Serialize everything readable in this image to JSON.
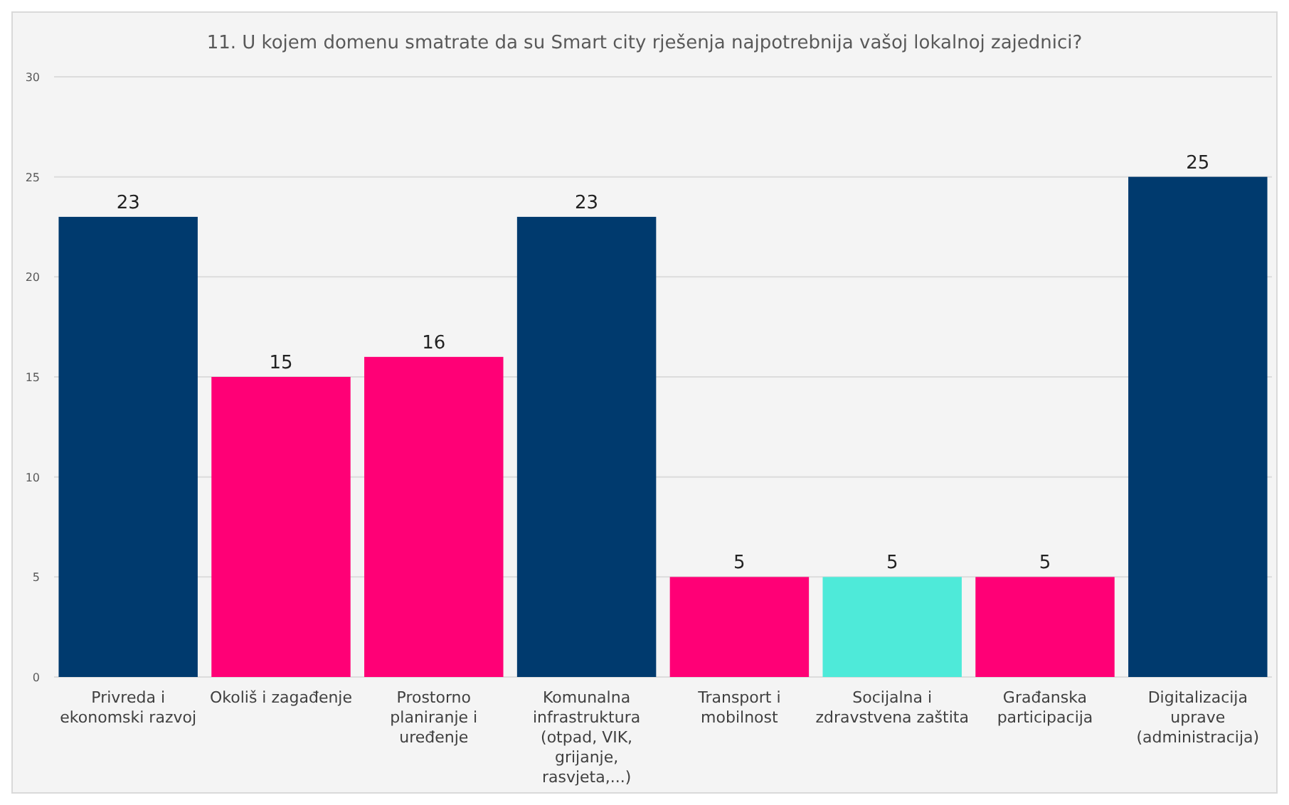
{
  "chart_data": {
    "type": "bar",
    "title": "11. U kojem domenu smatrate da su Smart city rješenja najpotrebnija vašoj lokalnoj zajednici?",
    "categories": [
      "Privreda i ekonomski razvoj",
      "Okoliš i zagađenje",
      "Prostorno planiranje i uređenje",
      "Komunalna infrastruktura (otpad, VIK, grijanje, rasvjeta,...)",
      "Transport i mobilnost",
      "Socijalna i zdravstvena zaštita",
      "Građanska participacija",
      "Digitalizacija uprave (administracija)"
    ],
    "values": [
      23,
      15,
      16,
      23,
      5,
      5,
      5,
      25
    ],
    "colors": [
      "#003a6e",
      "#ff0076",
      "#ff0076",
      "#003a6e",
      "#ff0076",
      "#4eead9",
      "#ff0076",
      "#003a6e"
    ],
    "ylim": [
      0,
      30
    ],
    "yticks": [
      0,
      5,
      10,
      15,
      20,
      25,
      30
    ],
    "grid": "y",
    "data_labels": true
  }
}
